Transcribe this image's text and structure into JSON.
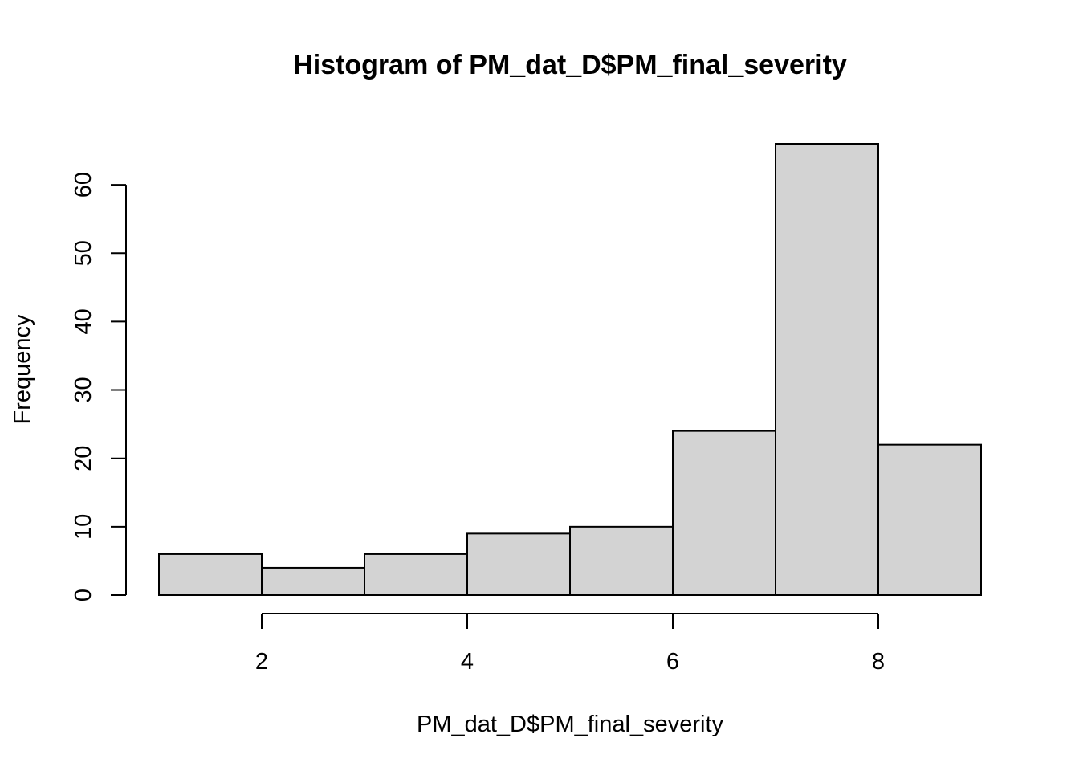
{
  "chart_data": {
    "type": "bar",
    "subtype": "histogram",
    "title": "Histogram of PM_dat_D$PM_final_severity",
    "xlabel": "PM_dat_D$PM_final_severity",
    "ylabel": "Frequency",
    "bins": [
      {
        "start": 1,
        "end": 2,
        "count": 6
      },
      {
        "start": 2,
        "end": 3,
        "count": 4
      },
      {
        "start": 3,
        "end": 4,
        "count": 6
      },
      {
        "start": 4,
        "end": 5,
        "count": 9
      },
      {
        "start": 5,
        "end": 6,
        "count": 10
      },
      {
        "start": 6,
        "end": 7,
        "count": 24
      },
      {
        "start": 7,
        "end": 8,
        "count": 66
      },
      {
        "start": 8,
        "end": 9,
        "count": 22
      }
    ],
    "xlim": [
      1,
      9
    ],
    "ylim": [
      0,
      66
    ],
    "x_ticks": [
      2,
      4,
      6,
      8
    ],
    "x_tick_labels": [
      "2",
      "4",
      "6",
      "8"
    ],
    "y_ticks": [
      0,
      10,
      20,
      30,
      40,
      50,
      60
    ],
    "y_tick_labels": [
      "0",
      "10",
      "20",
      "30",
      "40",
      "50",
      "60"
    ],
    "grid": false,
    "legend": "none",
    "colors": {
      "bar_fill": "#d3d3d3",
      "bar_stroke": "#000000",
      "axis": "#000000",
      "background": "#ffffff"
    }
  }
}
